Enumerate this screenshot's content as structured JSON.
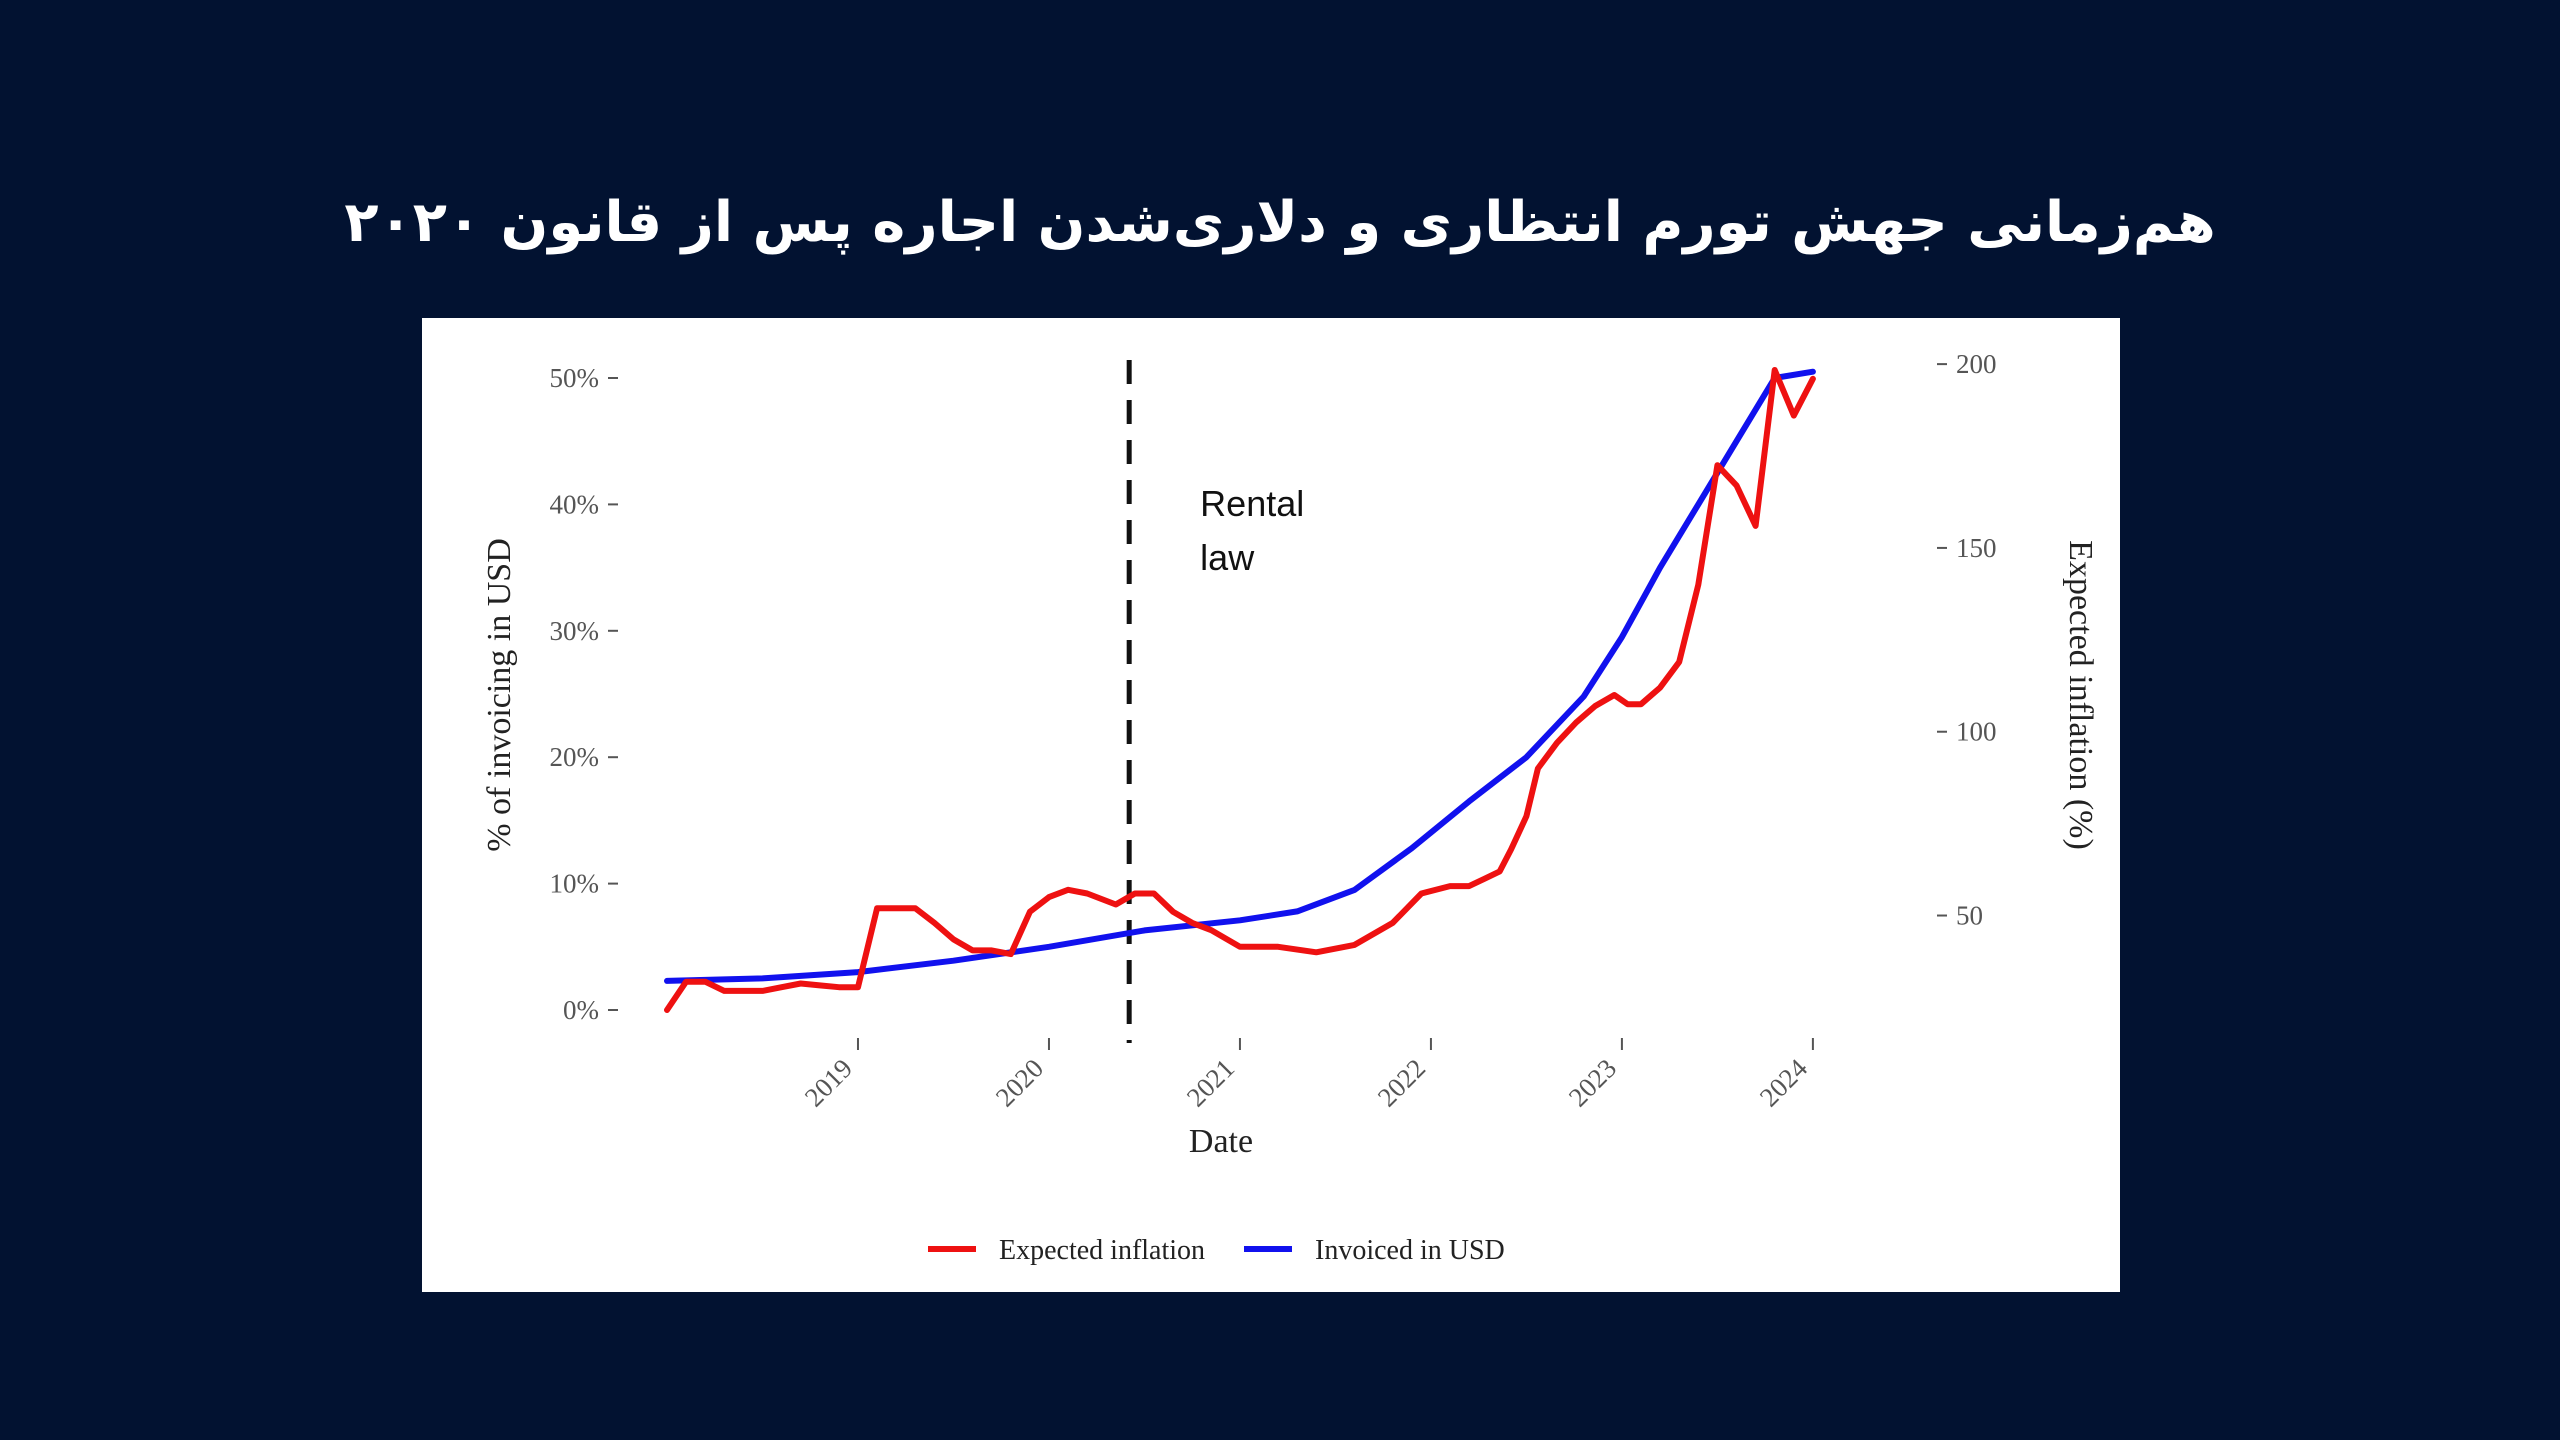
{
  "header": {
    "title": "هم‌زمانی جهش تورم انتظاری و دلاری‌شدن اجاره پس از قانون ۲۰۲۰"
  },
  "colors": {
    "background": "#021231",
    "panel": "#ffffff",
    "expected_inflation": "#ee1111",
    "invoiced_usd": "#1111ee"
  },
  "chart_data": {
    "type": "line",
    "title": "",
    "xlabel": "Date",
    "ylabel_left": "% of invoicing in USD",
    "ylabel_right": "Expected inflation (%)",
    "x_ticks": [
      "2019",
      "2020",
      "2021",
      "2022",
      "2023",
      "2024"
    ],
    "x_tick_values": [
      2019,
      2020,
      2021,
      2022,
      2023,
      2024
    ],
    "xlim": [
      2018,
      2024.1
    ],
    "y_left_ticks": [
      "0%",
      "10%",
      "20%",
      "30%",
      "40%",
      "50%"
    ],
    "y_left_tick_values": [
      0,
      10,
      20,
      30,
      40,
      50
    ],
    "y_left_lim": [
      0,
      50
    ],
    "y_right_ticks": [
      "50",
      "100",
      "150",
      "200"
    ],
    "y_right_tick_values": [
      50,
      100,
      150,
      200
    ],
    "y_right_lim": [
      24.3,
      198.4
    ],
    "grid": false,
    "legend_position": "bottom",
    "annotation": {
      "x": 2020.42,
      "label_lines": [
        "Rental",
        "law"
      ]
    },
    "series": [
      {
        "name": "Expected inflation",
        "axis": "right",
        "points": [
          [
            2018.0,
            24.3
          ],
          [
            2018.1,
            32.0
          ],
          [
            2018.2,
            32.0
          ],
          [
            2018.3,
            29.5
          ],
          [
            2018.4,
            29.5
          ],
          [
            2018.5,
            29.5
          ],
          [
            2018.6,
            30.5
          ],
          [
            2018.7,
            31.5
          ],
          [
            2018.8,
            31.0
          ],
          [
            2018.9,
            30.5
          ],
          [
            2019.0,
            30.5
          ],
          [
            2019.1,
            52.0
          ],
          [
            2019.2,
            52.0
          ],
          [
            2019.3,
            52.0
          ],
          [
            2019.4,
            48.0
          ],
          [
            2019.5,
            43.5
          ],
          [
            2019.6,
            40.5
          ],
          [
            2019.7,
            40.5
          ],
          [
            2019.8,
            39.5
          ],
          [
            2019.9,
            51.0
          ],
          [
            2020.0,
            55.0
          ],
          [
            2020.1,
            57.0
          ],
          [
            2020.2,
            56.0
          ],
          [
            2020.35,
            53.0
          ],
          [
            2020.45,
            56.0
          ],
          [
            2020.55,
            56.0
          ],
          [
            2020.65,
            51.0
          ],
          [
            2020.75,
            48.0
          ],
          [
            2020.85,
            46.0
          ],
          [
            2021.0,
            41.5
          ],
          [
            2021.2,
            41.5
          ],
          [
            2021.4,
            40.0
          ],
          [
            2021.6,
            42.0
          ],
          [
            2021.8,
            48.0
          ],
          [
            2021.95,
            56.0
          ],
          [
            2022.1,
            58.0
          ],
          [
            2022.2,
            58.0
          ],
          [
            2022.28,
            60.0
          ],
          [
            2022.36,
            62.0
          ],
          [
            2022.42,
            68.0
          ],
          [
            2022.5,
            77.0
          ],
          [
            2022.56,
            90.0
          ],
          [
            2022.66,
            97.0
          ],
          [
            2022.76,
            102.5
          ],
          [
            2022.86,
            107.0
          ],
          [
            2022.96,
            110.0
          ],
          [
            2023.03,
            107.5
          ],
          [
            2023.1,
            107.5
          ],
          [
            2023.2,
            112.0
          ],
          [
            2023.3,
            119.0
          ],
          [
            2023.4,
            140.0
          ],
          [
            2023.5,
            172.5
          ],
          [
            2023.6,
            167.0
          ],
          [
            2023.7,
            156.0
          ],
          [
            2023.8,
            198.4
          ],
          [
            2023.9,
            186.0
          ],
          [
            2024.0,
            196.0
          ]
        ]
      },
      {
        "name": "Invoiced in USD",
        "axis": "left",
        "points": [
          [
            2018.0,
            2.3
          ],
          [
            2018.5,
            2.5
          ],
          [
            2019.0,
            3.0
          ],
          [
            2019.5,
            3.9
          ],
          [
            2020.0,
            5.0
          ],
          [
            2020.5,
            6.3
          ],
          [
            2021.0,
            7.1
          ],
          [
            2021.3,
            7.8
          ],
          [
            2021.6,
            9.5
          ],
          [
            2021.9,
            12.8
          ],
          [
            2022.2,
            16.5
          ],
          [
            2022.5,
            20.0
          ],
          [
            2022.8,
            24.8
          ],
          [
            2023.0,
            29.5
          ],
          [
            2023.2,
            35.0
          ],
          [
            2023.4,
            40.0
          ],
          [
            2023.6,
            45.0
          ],
          [
            2023.8,
            50.0
          ],
          [
            2024.0,
            50.5
          ]
        ]
      }
    ]
  }
}
